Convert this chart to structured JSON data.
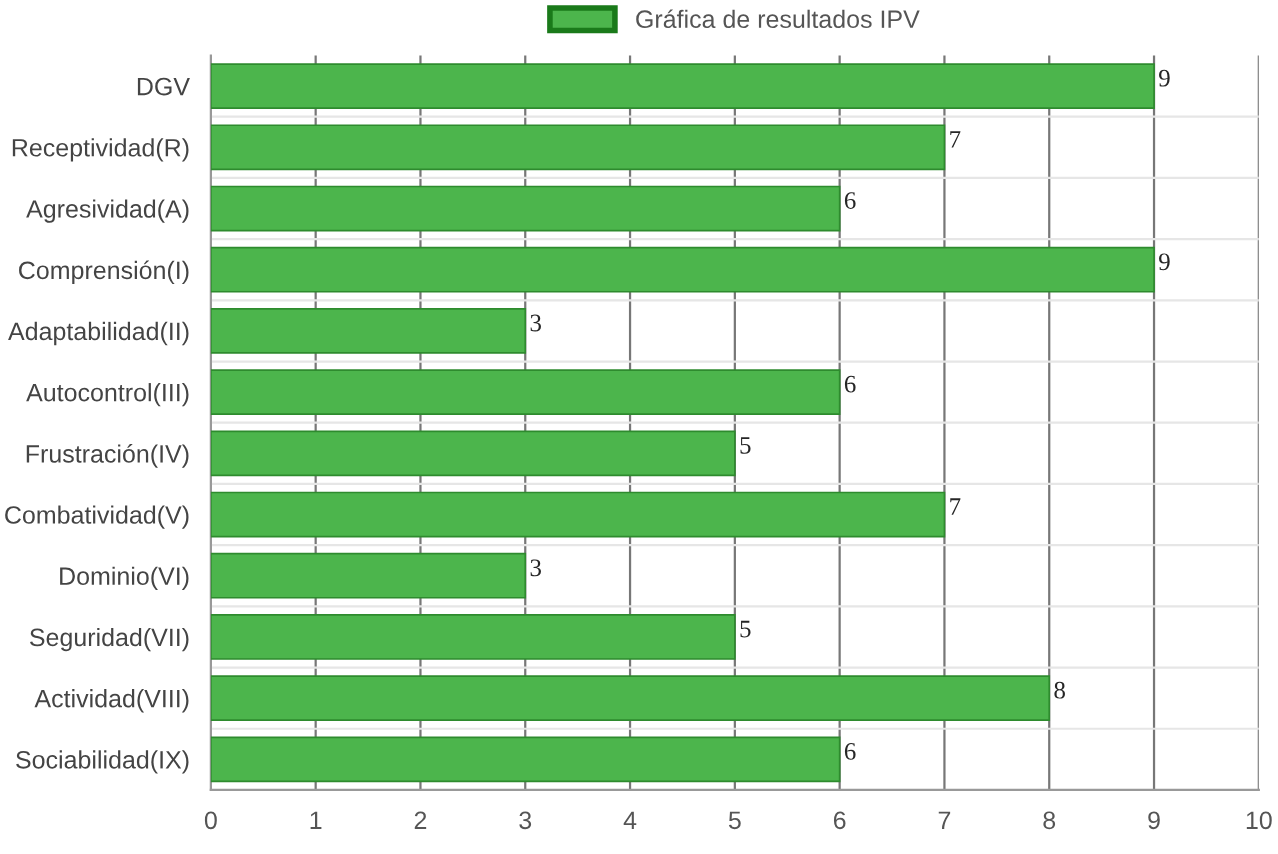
{
  "chart_data": {
    "type": "bar",
    "orientation": "horizontal",
    "categories": [
      "DGV",
      "Receptividad(R)",
      "Agresividad(A)",
      "Comprensión(I)",
      "Adaptabilidad(II)",
      "Autocontrol(III)",
      "Frustración(IV)",
      "Combatividad(V)",
      "Dominio(VI)",
      "Seguridad(VII)",
      "Actividad(VIII)",
      "Sociabilidad(IX)"
    ],
    "series": [
      {
        "name": "Gráfica de resultados IPV",
        "color": "#4cb54c",
        "values": [
          9,
          7,
          6,
          9,
          3,
          6,
          5,
          7,
          3,
          5,
          8,
          6
        ]
      }
    ],
    "xlim": [
      0,
      10
    ],
    "xticks": [
      0,
      1,
      2,
      3,
      4,
      5,
      6,
      7,
      8,
      9,
      10
    ],
    "grid": true,
    "legend": "top",
    "data_labels": true
  }
}
